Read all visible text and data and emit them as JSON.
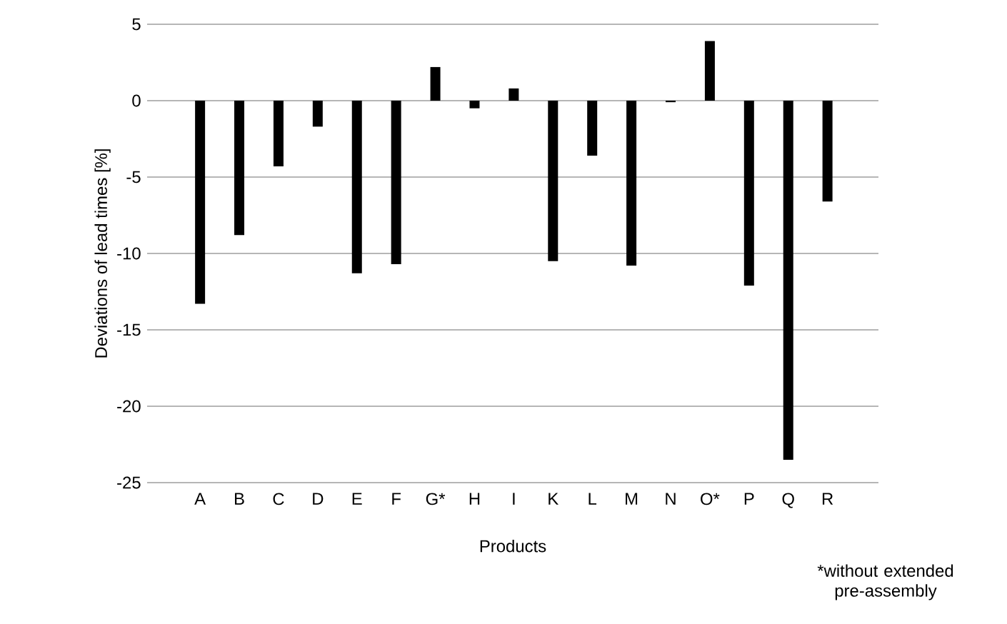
{
  "chart_data": {
    "type": "bar",
    "xlabel": "Products",
    "ylabel": "Deviations of lead times [%]",
    "categories": [
      "A",
      "B",
      "C",
      "D",
      "E",
      "F",
      "G*",
      "H",
      "I",
      "K",
      "L",
      "M",
      "N",
      "O*",
      "P",
      "Q",
      "R"
    ],
    "values": [
      -13.3,
      -8.8,
      -4.3,
      -1.7,
      -11.3,
      -10.7,
      2.2,
      -0.5,
      0.8,
      -10.5,
      -3.6,
      -10.8,
      -0.1,
      3.9,
      -12.1,
      -23.5,
      -6.6
    ],
    "color": "#000000",
    "ylim": [
      -25,
      5
    ],
    "yticks": [
      -25,
      -20,
      -15,
      -10,
      -5,
      0,
      5
    ],
    "grid": "y",
    "annotations": [
      "*without extended pre-assembly"
    ]
  }
}
